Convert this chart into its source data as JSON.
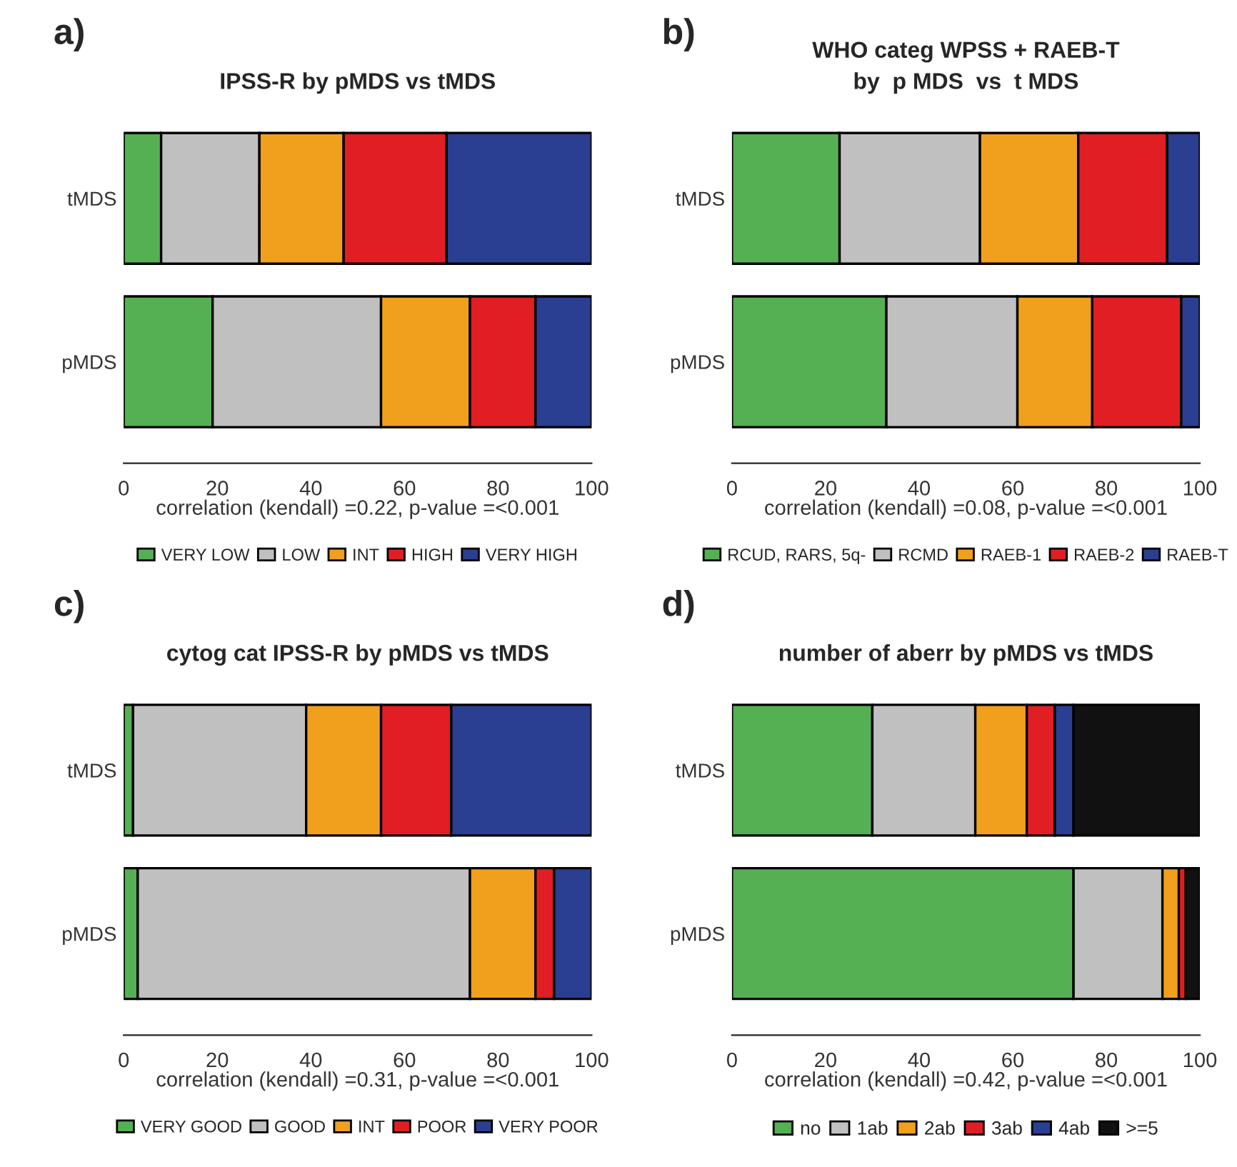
{
  "chart_data": [
    {
      "type": "bar",
      "orientation": "horizontal",
      "stacked": true,
      "title": "IPSS-R by pMDS vs tMDS",
      "annotations": [
        "a)"
      ],
      "xlabel": "correlation (kendall) =0.22, p-value =<0.001",
      "categories": [
        "tMDS",
        "pMDS"
      ],
      "xlim": [
        0,
        100
      ],
      "xticks": [
        0,
        20,
        40,
        60,
        80,
        100
      ],
      "legend": "bottom",
      "series": [
        {
          "name": "VERY LOW",
          "color": "#55b054",
          "values": [
            8,
            19
          ]
        },
        {
          "name": "LOW",
          "color": "#c0c0c0",
          "values": [
            21,
            36
          ]
        },
        {
          "name": "INT",
          "color": "#f0a01c",
          "values": [
            18,
            19
          ]
        },
        {
          "name": "HIGH",
          "color": "#e01e24",
          "values": [
            22,
            14
          ]
        },
        {
          "name": "VERY HIGH",
          "color": "#2a3f92",
          "values": [
            31,
            12
          ]
        }
      ]
    },
    {
      "type": "bar",
      "orientation": "horizontal",
      "stacked": true,
      "title": "WHO categ WPSS + RAEB-T\nby  p MDS  vs  t MDS",
      "annotations": [
        "b)"
      ],
      "xlabel": "correlation (kendall) =0.08, p-value =<0.001",
      "categories": [
        "tMDS",
        "pMDS"
      ],
      "xlim": [
        0,
        100
      ],
      "xticks": [
        0,
        20,
        40,
        60,
        80,
        100
      ],
      "legend": "bottom",
      "series": [
        {
          "name": "RCUD, RARS, 5q-",
          "color": "#55b054",
          "values": [
            23,
            33
          ]
        },
        {
          "name": "RCMD",
          "color": "#c0c0c0",
          "values": [
            30,
            28
          ]
        },
        {
          "name": "RAEB-1",
          "color": "#f0a01c",
          "values": [
            21,
            16
          ]
        },
        {
          "name": "RAEB-2",
          "color": "#e01e24",
          "values": [
            19,
            19
          ]
        },
        {
          "name": "RAEB-T",
          "color": "#2a3f92",
          "values": [
            7,
            4
          ]
        }
      ]
    },
    {
      "type": "bar",
      "orientation": "horizontal",
      "stacked": true,
      "title": "cytog cat IPSS-R by pMDS vs tMDS",
      "annotations": [
        "c)"
      ],
      "xlabel": "correlation (kendall) =0.31, p-value =<0.001",
      "categories": [
        "tMDS",
        "pMDS"
      ],
      "xlim": [
        0,
        100
      ],
      "xticks": [
        0,
        20,
        40,
        60,
        80,
        100
      ],
      "legend": "bottom",
      "series": [
        {
          "name": "VERY GOOD",
          "color": "#55b054",
          "values": [
            2,
            3
          ]
        },
        {
          "name": "GOOD",
          "color": "#c0c0c0",
          "values": [
            37,
            71
          ]
        },
        {
          "name": "INT",
          "color": "#f0a01c",
          "values": [
            16,
            14
          ]
        },
        {
          "name": "POOR",
          "color": "#e01e24",
          "values": [
            15,
            4
          ]
        },
        {
          "name": "VERY POOR",
          "color": "#2a3f92",
          "values": [
            30,
            8
          ]
        }
      ]
    },
    {
      "type": "bar",
      "orientation": "horizontal",
      "stacked": true,
      "title": "number of aberr by pMDS vs tMDS",
      "annotations": [
        "d)"
      ],
      "xlabel": "correlation (kendall) =0.42, p-value =<0.001",
      "categories": [
        "tMDS",
        "pMDS"
      ],
      "xlim": [
        0,
        100
      ],
      "xticks": [
        0,
        20,
        40,
        60,
        80,
        100
      ],
      "legend": "bottom",
      "series": [
        {
          "name": "no",
          "color": "#55b054",
          "values": [
            30,
            73
          ]
        },
        {
          "name": "1ab",
          "color": "#c0c0c0",
          "values": [
            22,
            19
          ]
        },
        {
          "name": "2ab",
          "color": "#f0a01c",
          "values": [
            11,
            3.5
          ]
        },
        {
          "name": "3ab",
          "color": "#e01e24",
          "values": [
            6,
            1.5
          ]
        },
        {
          "name": "4ab",
          "color": "#2a3f92",
          "values": [
            4,
            0
          ]
        },
        {
          "name": ">=5",
          "color": "#111111",
          "values": [
            27,
            3
          ]
        }
      ]
    }
  ]
}
